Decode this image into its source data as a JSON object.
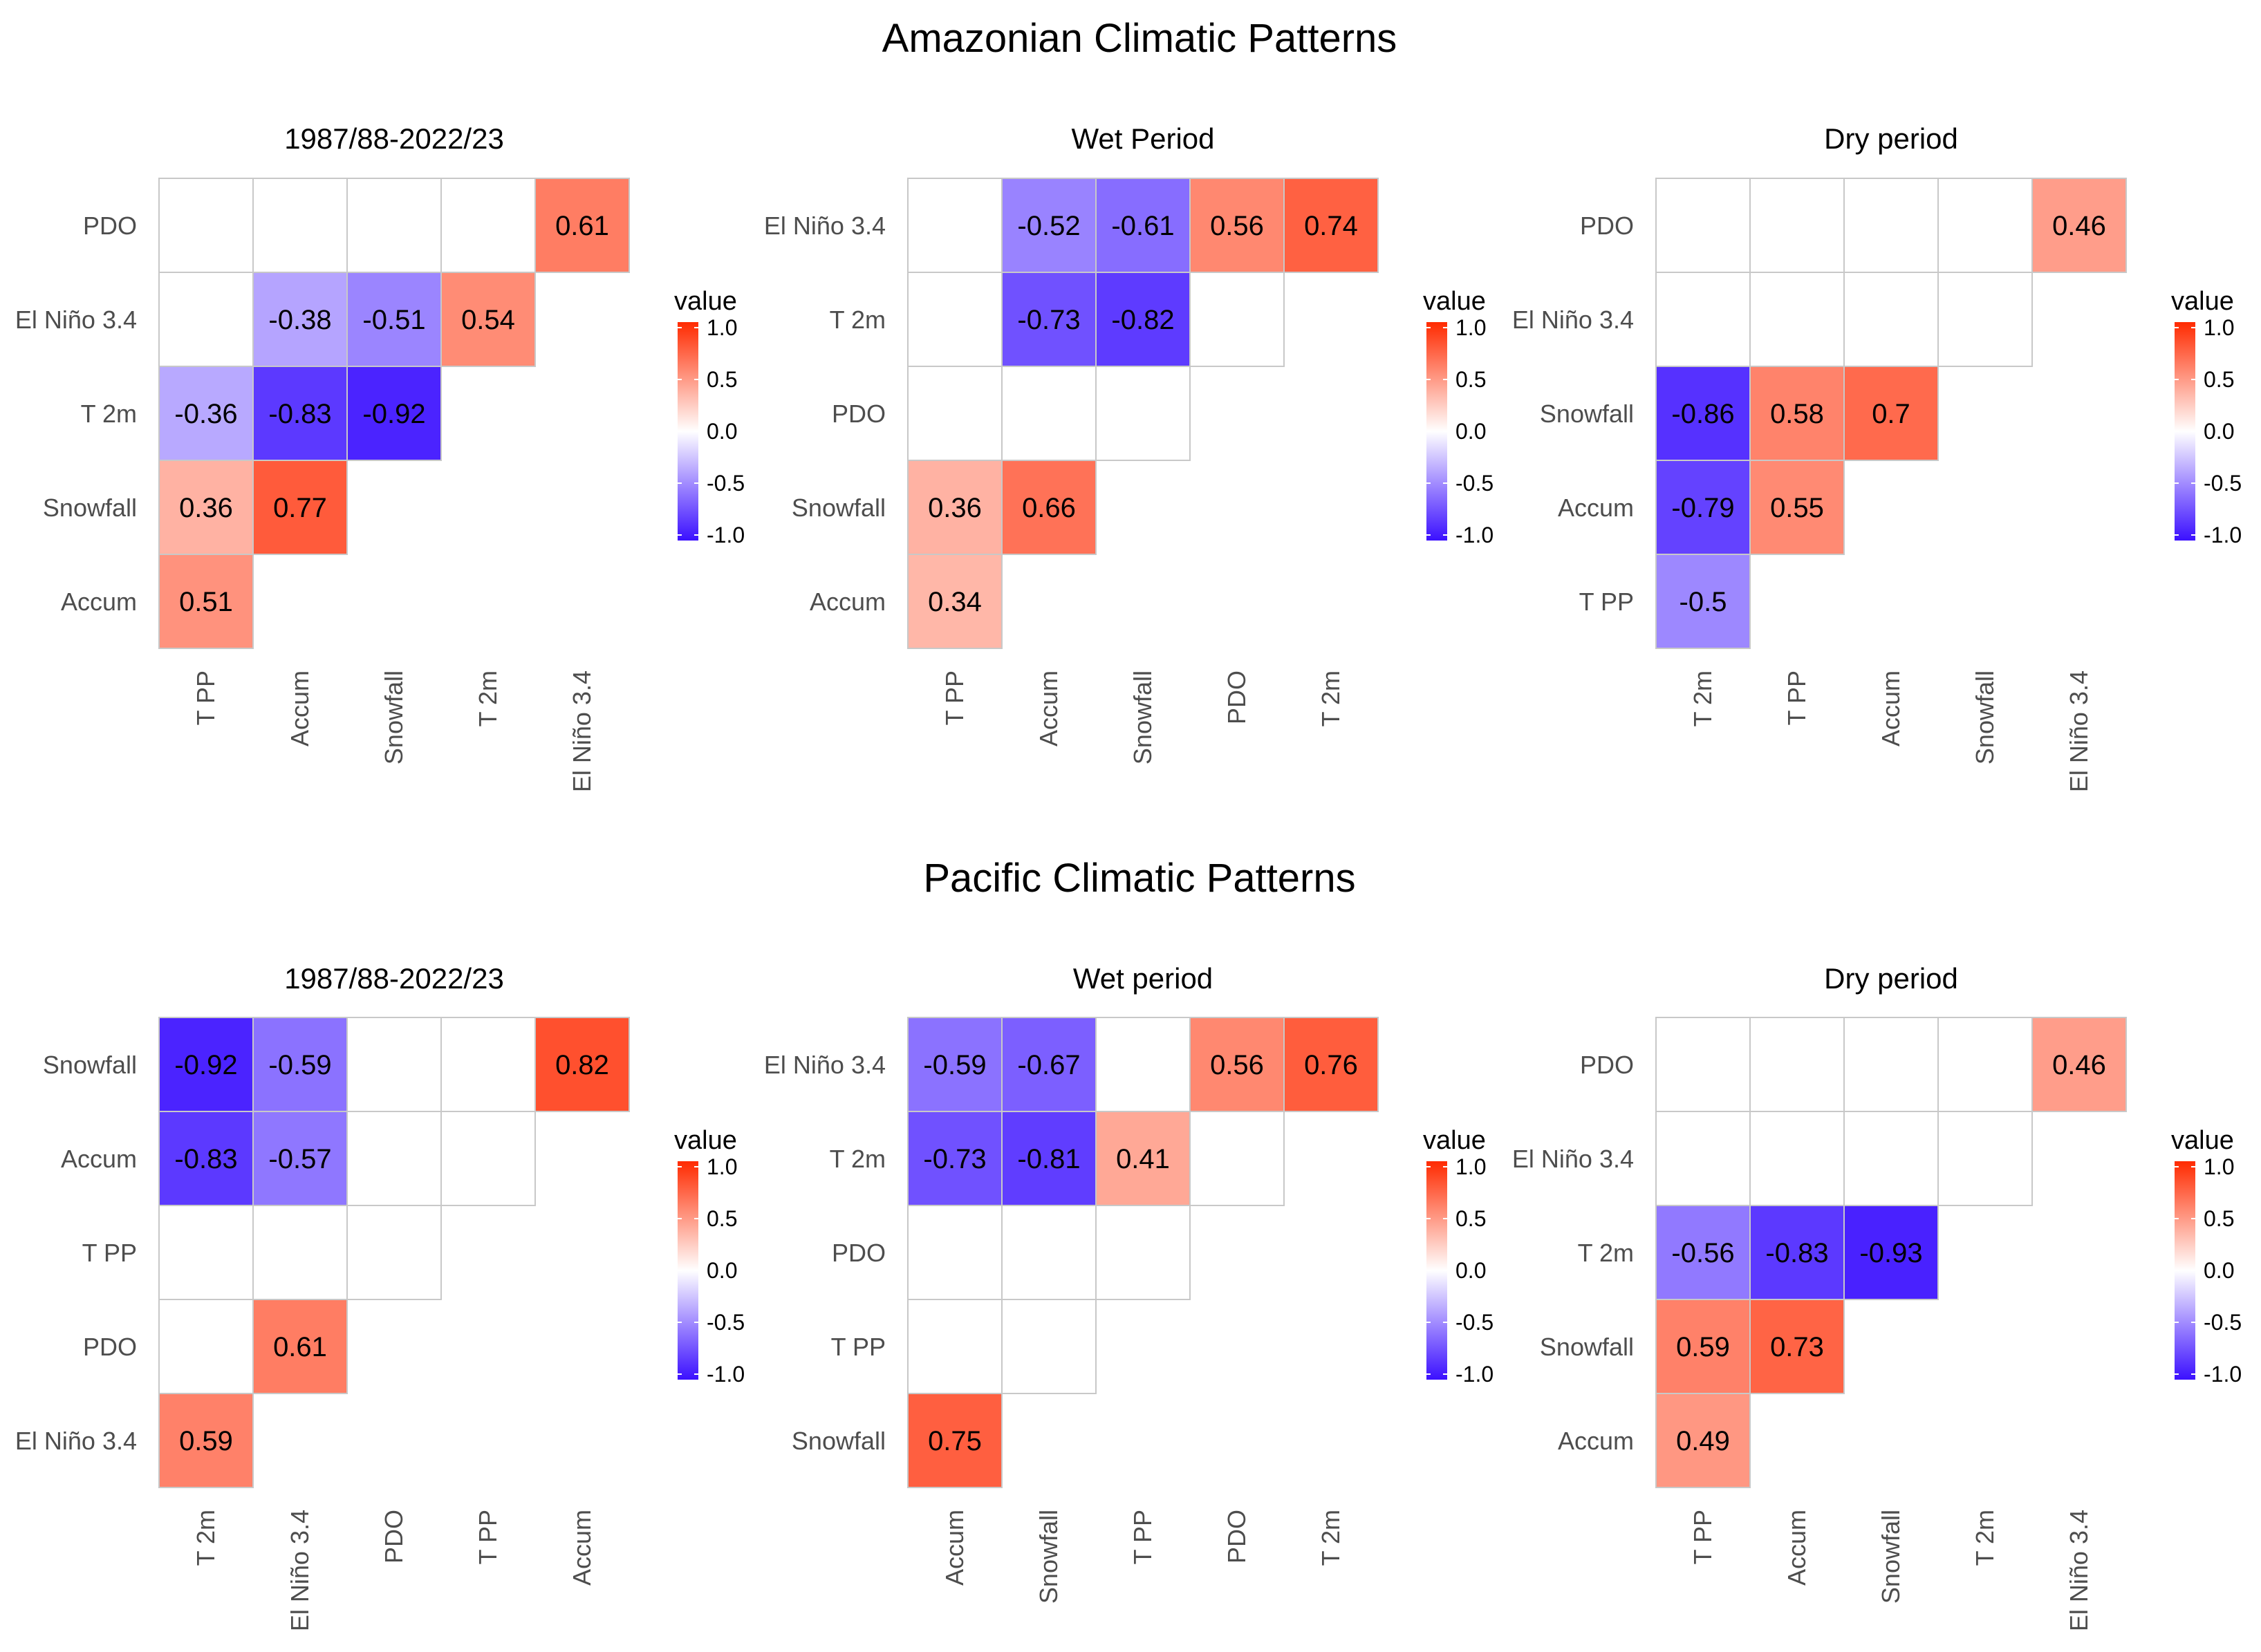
{
  "colors": {
    "negative": "#3b10ff",
    "zero": "#ffffff",
    "positive": "#ff2a00",
    "grid": "#c8c8c8",
    "axis_text": "#4d4d4d"
  },
  "legend": {
    "title": "value",
    "ticks": [
      "1.0",
      "0.5",
      "0.0",
      "-0.5",
      "-1.0"
    ]
  },
  "sections": [
    {
      "title": "Amazonian Climatic Patterns"
    },
    {
      "title": "Pacific Climatic Patterns"
    }
  ],
  "chart_data": [
    {
      "type": "heatmap",
      "title": "1987/88-2022/23",
      "section": "Amazonian Climatic Patterns",
      "rows": [
        "PDO",
        "El Niño 3.4",
        "T 2m",
        "Snowfall",
        "Accum"
      ],
      "cols": [
        "T PP",
        "Accum",
        "Snowfall",
        "T 2m",
        "El Niño 3.4"
      ],
      "values": [
        [
          null,
          null,
          null,
          null,
          0.61
        ],
        [
          null,
          -0.38,
          -0.51,
          0.54
        ],
        [
          -0.36,
          -0.83,
          -0.92
        ],
        [
          0.36,
          0.77
        ],
        [
          0.51
        ]
      ],
      "labels": [
        [
          "",
          "",
          "",
          "",
          "0.61"
        ],
        [
          "",
          "-0.38",
          "-0.51",
          "0.54"
        ],
        [
          "-0.36",
          "-0.83",
          "-0.92"
        ],
        [
          "0.36",
          "0.77"
        ],
        [
          "0.51"
        ]
      ],
      "value_range": [
        -1,
        1
      ]
    },
    {
      "type": "heatmap",
      "title": "Wet Period",
      "section": "Amazonian Climatic Patterns",
      "rows": [
        "El Niño 3.4",
        "T 2m",
        "PDO",
        "Snowfall",
        "Accum"
      ],
      "cols": [
        "T PP",
        "Accum",
        "Snowfall",
        "PDO",
        "T 2m"
      ],
      "values": [
        [
          null,
          -0.52,
          -0.61,
          0.56,
          0.74
        ],
        [
          null,
          -0.73,
          -0.82,
          null
        ],
        [
          null,
          null,
          null
        ],
        [
          0.36,
          0.66
        ],
        [
          0.34
        ]
      ],
      "labels": [
        [
          "",
          "-0.52",
          "-0.61",
          "0.56",
          "0.74"
        ],
        [
          "",
          "-0.73",
          "-0.82",
          ""
        ],
        [
          "",
          "",
          ""
        ],
        [
          "0.36",
          "0.66"
        ],
        [
          "0.34"
        ]
      ],
      "value_range": [
        -1,
        1
      ]
    },
    {
      "type": "heatmap",
      "title": "Dry period",
      "section": "Amazonian Climatic Patterns",
      "rows": [
        "PDO",
        "El Niño 3.4",
        "Snowfall",
        "Accum",
        "T PP"
      ],
      "cols": [
        "T 2m",
        "T PP",
        "Accum",
        "Snowfall",
        "El Niño 3.4"
      ],
      "values": [
        [
          null,
          null,
          null,
          null,
          0.46
        ],
        [
          null,
          null,
          null,
          null
        ],
        [
          -0.86,
          0.58,
          0.7
        ],
        [
          -0.79,
          0.55
        ],
        [
          -0.5
        ]
      ],
      "labels": [
        [
          "",
          "",
          "",
          "",
          "0.46"
        ],
        [
          "",
          "",
          "",
          ""
        ],
        [
          "-0.86",
          "0.58",
          "0.7"
        ],
        [
          "-0.79",
          "0.55"
        ],
        [
          "-0.5"
        ]
      ],
      "value_range": [
        -1,
        1
      ]
    },
    {
      "type": "heatmap",
      "title": "1987/88-2022/23",
      "section": "Pacific Climatic Patterns",
      "rows": [
        "Snowfall",
        "Accum",
        "T PP",
        "PDO",
        "El Niño 3.4"
      ],
      "cols": [
        "T 2m",
        "El Niño 3.4",
        "PDO",
        "T PP",
        "Accum"
      ],
      "values": [
        [
          -0.92,
          -0.59,
          null,
          null,
          0.82
        ],
        [
          -0.83,
          -0.57,
          null,
          null
        ],
        [
          null,
          null,
          null
        ],
        [
          null,
          0.61
        ],
        [
          0.59
        ]
      ],
      "labels": [
        [
          "-0.92",
          "-0.59",
          "",
          "",
          "0.82"
        ],
        [
          "-0.83",
          "-0.57",
          "",
          ""
        ],
        [
          "",
          "",
          ""
        ],
        [
          "",
          "0.61"
        ],
        [
          "0.59"
        ]
      ],
      "value_range": [
        -1,
        1
      ]
    },
    {
      "type": "heatmap",
      "title": "Wet period",
      "section": "Pacific Climatic Patterns",
      "rows": [
        "El Niño 3.4",
        "T 2m",
        "PDO",
        "T PP",
        "Snowfall"
      ],
      "cols": [
        "Accum",
        "Snowfall",
        "T PP",
        "PDO",
        "T 2m"
      ],
      "values": [
        [
          -0.59,
          -0.67,
          null,
          0.56,
          0.76
        ],
        [
          -0.73,
          -0.81,
          0.41,
          null
        ],
        [
          null,
          null,
          null
        ],
        [
          null,
          null
        ],
        [
          0.75
        ]
      ],
      "labels": [
        [
          "-0.59",
          "-0.67",
          "",
          "0.56",
          "0.76"
        ],
        [
          "-0.73",
          "-0.81",
          "0.41",
          ""
        ],
        [
          "",
          "",
          ""
        ],
        [
          "",
          ""
        ],
        [
          "0.75"
        ]
      ],
      "value_range": [
        -1,
        1
      ]
    },
    {
      "type": "heatmap",
      "title": "Dry period",
      "section": "Pacific Climatic Patterns",
      "rows": [
        "PDO",
        "El Niño 3.4",
        "T 2m",
        "Snowfall",
        "Accum"
      ],
      "cols": [
        "T PP",
        "Accum",
        "Snowfall",
        "T 2m",
        "El Niño 3.4"
      ],
      "values": [
        [
          null,
          null,
          null,
          null,
          0.46
        ],
        [
          null,
          null,
          null,
          null
        ],
        [
          -0.56,
          -0.83,
          -0.93
        ],
        [
          0.59,
          0.73
        ],
        [
          0.49
        ]
      ],
      "labels": [
        [
          "",
          "",
          "",
          "",
          "0.46"
        ],
        [
          "",
          "",
          "",
          ""
        ],
        [
          "-0.56",
          "-0.83",
          "-0.93"
        ],
        [
          "0.59",
          "0.73"
        ],
        [
          "0.49"
        ]
      ],
      "value_range": [
        -1,
        1
      ]
    }
  ]
}
